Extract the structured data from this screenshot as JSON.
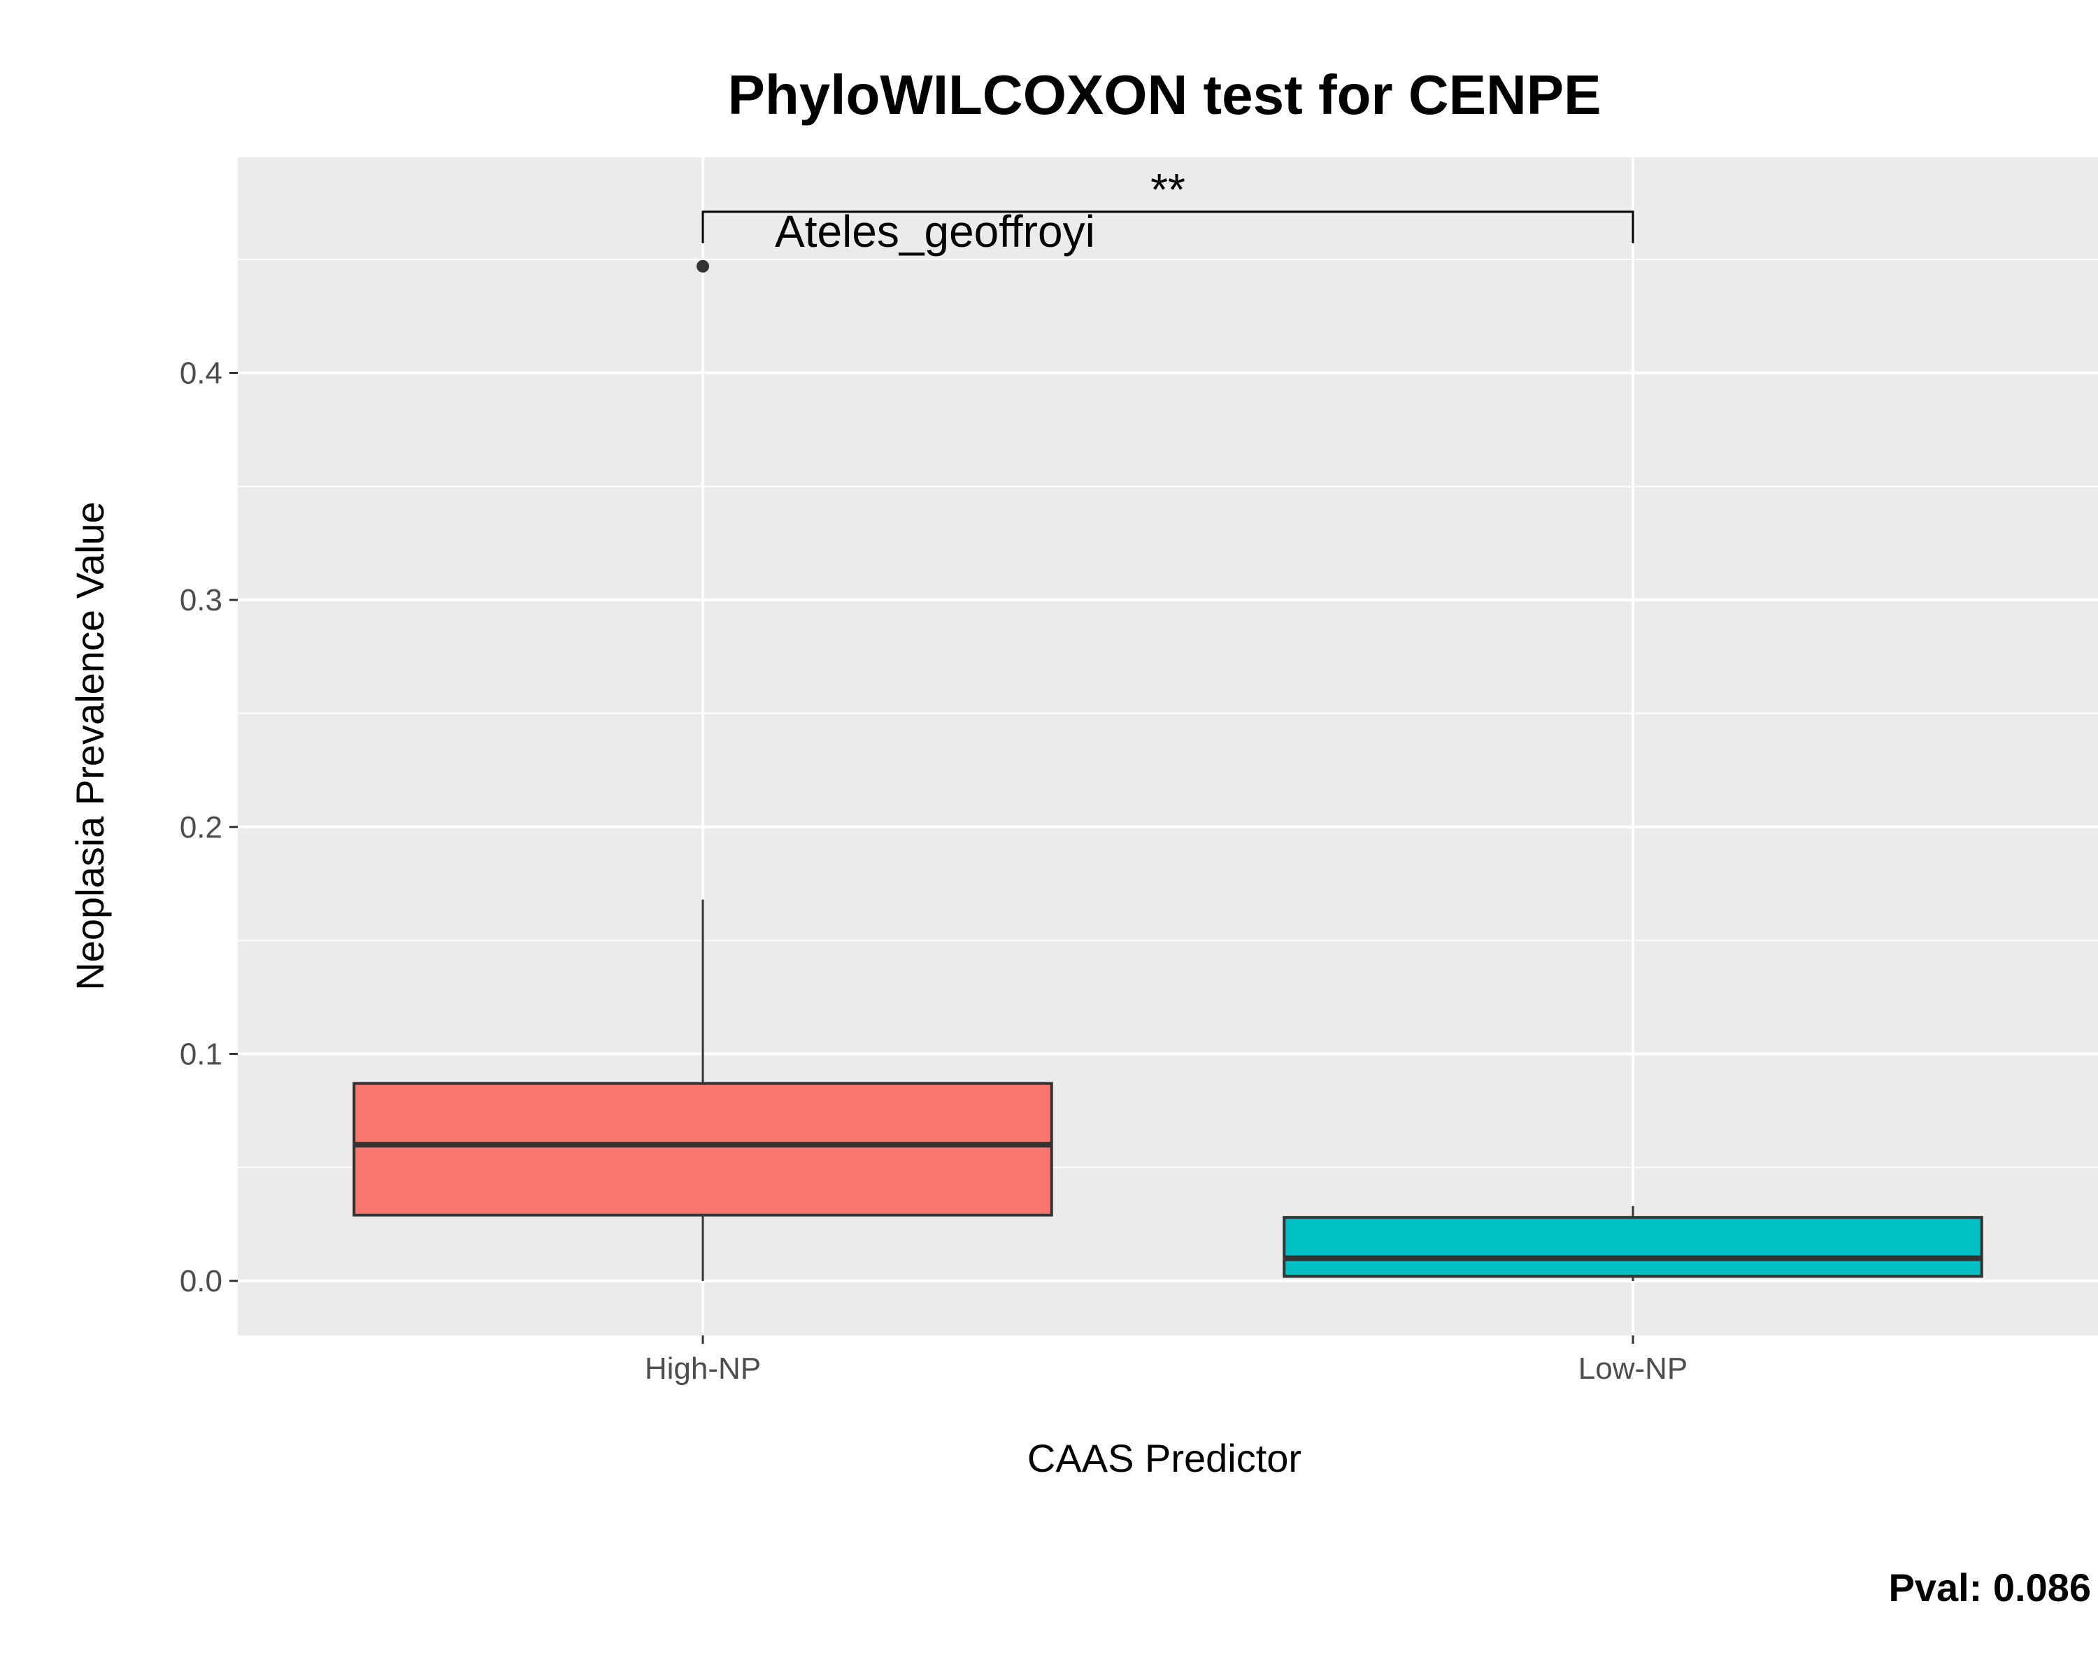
{
  "chart_data": {
    "type": "boxplot",
    "title": "PhyloWILCOXON test for CENPE",
    "xlabel": "CAAS Predictor",
    "ylabel": "Neoplasia Prevalence Value",
    "categories": [
      "High-NP",
      "Low-NP"
    ],
    "ylim": [
      -0.024,
      0.495
    ],
    "yticks": [
      0.0,
      0.1,
      0.2,
      0.3,
      0.4
    ],
    "ytick_labels": [
      "0.0",
      "0.1",
      "0.2",
      "0.3",
      "0.4"
    ],
    "grid": true,
    "boxes": [
      {
        "category": "High-NP",
        "min": 0.0,
        "q1": 0.029,
        "median": 0.06,
        "q3": 0.087,
        "max": 0.168,
        "fill": "#F8766D",
        "outliers": [
          {
            "value": 0.447,
            "label": "Ateles_geoffroyi"
          }
        ]
      },
      {
        "category": "Low-NP",
        "min": 0.0,
        "q1": 0.002,
        "median": 0.01,
        "q3": 0.028,
        "max": 0.033,
        "fill": "#00BFC4",
        "outliers": []
      }
    ],
    "significance": {
      "from": "High-NP",
      "to": "Low-NP",
      "y": 0.471,
      "label": "**"
    },
    "pvalue_text": "Pval:  0.086"
  },
  "colors": {
    "panel_bg": "#EBEBEB",
    "grid_major": "#FFFFFF",
    "box_outline": "#333333",
    "tick_text": "#4d4d4d"
  }
}
